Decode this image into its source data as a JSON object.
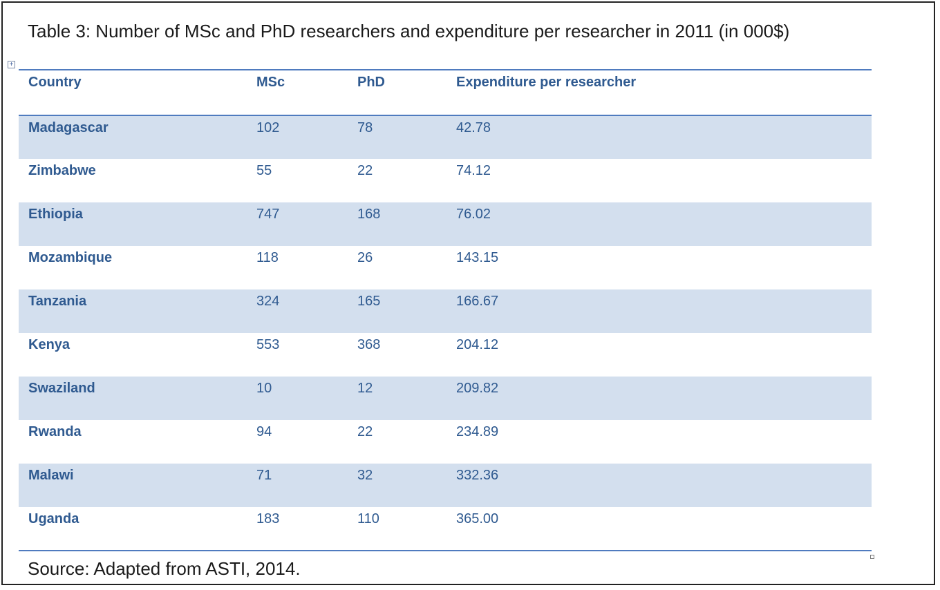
{
  "caption": "Table 3: Number of MSc and PhD researchers and expenditure per researcher in 2011 (in 000$)",
  "table": {
    "headers": [
      "Country",
      "MSc",
      "PhD",
      "Expenditure per researcher"
    ],
    "rows": [
      [
        "Madagascar",
        "102",
        "78",
        "42.78"
      ],
      [
        "Zimbabwe",
        "55",
        "22",
        "74.12"
      ],
      [
        "Ethiopia",
        "747",
        "168",
        "76.02"
      ],
      [
        "Mozambique",
        "118",
        "26",
        "143.15"
      ],
      [
        "Tanzania",
        "324",
        "165",
        "166.67"
      ],
      [
        "Kenya",
        "553",
        "368",
        "204.12"
      ],
      [
        "Swaziland",
        "10",
        "12",
        "209.82"
      ],
      [
        "Rwanda",
        "94",
        "22",
        "234.89"
      ],
      [
        "Malawi",
        "71",
        "32",
        "332.36"
      ],
      [
        "Uganda",
        "183",
        "110",
        "365.00"
      ]
    ]
  },
  "source": "Source: Adapted from ASTI, 2014.",
  "colors": {
    "header_text": "#2f5a90",
    "band_fill": "#d3dfee",
    "rule": "#4f7bbf"
  },
  "icons": {
    "table_move_handle": "move-handle-icon",
    "table_resize_handle": "resize-handle-icon"
  }
}
